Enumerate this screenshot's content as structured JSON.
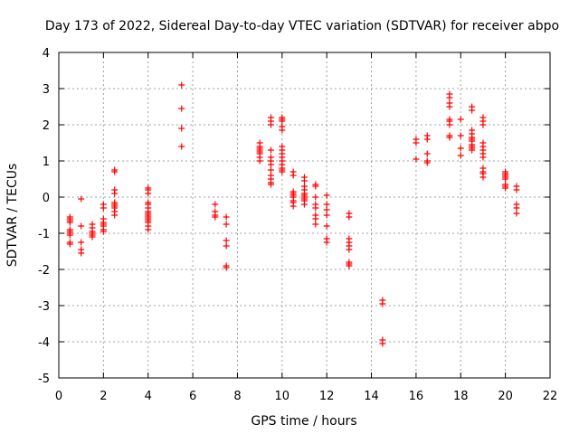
{
  "chart_data": {
    "type": "scatter",
    "title": "Day 173 of 2022, Sidereal Day-to-day VTEC variation (SDTVAR) for receiver abpo",
    "xlabel": "GPS time / hours",
    "ylabel": "SDTVAR / TECUs",
    "xlim": [
      0,
      22
    ],
    "ylim": [
      -5,
      4
    ],
    "xticks": [
      0,
      2,
      4,
      6,
      8,
      10,
      12,
      14,
      16,
      18,
      20,
      22
    ],
    "yticks": [
      -5,
      -4,
      -3,
      -2,
      -1,
      0,
      1,
      2,
      3,
      4
    ],
    "grid": true,
    "marker": "+",
    "color": "#ff0000",
    "series": [
      {
        "name": "SDTVAR",
        "x": [
          0.5,
          0.5,
          0.5,
          0.5,
          0.5,
          0.5,
          0.5,
          0.5,
          0.5,
          0.5,
          1.0,
          1.0,
          1.0,
          1.0,
          1.0,
          1.5,
          1.5,
          1.5,
          1.5,
          1.5,
          1.5,
          2.0,
          2.0,
          2.0,
          2.0,
          2.0,
          2.0,
          2.0,
          2.0,
          2.5,
          2.5,
          2.5,
          2.5,
          2.5,
          2.5,
          2.5,
          2.5,
          2.5,
          2.5,
          4.0,
          4.0,
          4.0,
          4.0,
          4.0,
          4.0,
          4.0,
          4.0,
          4.0,
          4.0,
          4.0,
          4.0,
          4.0,
          4.0,
          4.0,
          5.5,
          5.5,
          5.5,
          5.5,
          7.0,
          7.0,
          7.0,
          7.0,
          7.5,
          7.5,
          7.5,
          7.5,
          7.5,
          7.5,
          9.0,
          9.0,
          9.0,
          9.0,
          9.0,
          9.0,
          9.0,
          9.0,
          9.5,
          9.5,
          9.5,
          9.5,
          9.5,
          9.5,
          9.5,
          9.5,
          9.5,
          9.5,
          9.5,
          9.5,
          10.0,
          10.0,
          10.0,
          10.0,
          10.0,
          10.0,
          10.0,
          10.0,
          10.0,
          10.0,
          10.0,
          10.0,
          10.0,
          10.0,
          10.5,
          10.5,
          10.5,
          10.5,
          10.5,
          10.5,
          10.5,
          10.5,
          10.5,
          11.0,
          11.0,
          11.0,
          11.0,
          11.0,
          11.0,
          11.0,
          11.0,
          11.0,
          11.0,
          11.5,
          11.5,
          11.5,
          11.5,
          11.5,
          11.5,
          11.5,
          11.5,
          12.0,
          12.0,
          12.0,
          12.0,
          12.0,
          12.0,
          12.0,
          13.0,
          13.0,
          13.0,
          13.0,
          13.0,
          13.0,
          13.0,
          13.0,
          13.0,
          14.5,
          14.5,
          14.5,
          14.5,
          16.0,
          16.0,
          16.0,
          16.5,
          16.5,
          16.5,
          16.5,
          16.5,
          17.5,
          17.5,
          17.5,
          17.5,
          17.5,
          17.5,
          17.5,
          17.5,
          17.5,
          18.0,
          18.0,
          18.0,
          18.0,
          18.5,
          18.5,
          18.5,
          18.5,
          18.5,
          18.5,
          18.5,
          18.5,
          18.5,
          18.5,
          18.5,
          19.0,
          19.0,
          19.0,
          19.0,
          19.0,
          19.0,
          19.0,
          19.0,
          19.0,
          19.0,
          19.0,
          19.0,
          20.0,
          20.0,
          20.0,
          20.0,
          20.0,
          20.0,
          20.0,
          20.0,
          20.5,
          20.5,
          20.5,
          20.5,
          20.5
        ],
        "y": [
          -0.6,
          -0.55,
          -0.65,
          -0.9,
          -0.95,
          -1.0,
          -1.05,
          -1.25,
          -1.3,
          -0.7,
          -0.05,
          -0.8,
          -1.25,
          -1.45,
          -1.55,
          -0.75,
          -0.85,
          -0.95,
          -1.0,
          -1.05,
          -1.1,
          -0.2,
          -0.3,
          -0.6,
          -0.7,
          -0.75,
          -0.8,
          -0.9,
          -0.95,
          0.75,
          0.7,
          0.2,
          0.1,
          -0.15,
          -0.2,
          -0.25,
          -0.3,
          -0.4,
          -0.5,
          0.25,
          0.2,
          0.1,
          -0.15,
          -0.2,
          -0.3,
          -0.4,
          -0.45,
          -0.5,
          -0.55,
          -0.6,
          -0.65,
          -0.7,
          -0.8,
          -0.9,
          3.1,
          2.45,
          1.9,
          1.4,
          -0.2,
          -0.4,
          -0.5,
          -0.55,
          -0.55,
          -0.75,
          -1.2,
          -1.35,
          -1.9,
          -1.95,
          1.5,
          1.4,
          1.35,
          1.3,
          1.25,
          1.2,
          1.1,
          1.0,
          2.2,
          2.1,
          2.0,
          1.3,
          1.1,
          1.0,
          0.9,
          0.75,
          0.6,
          0.5,
          0.4,
          0.35,
          2.2,
          2.15,
          2.1,
          1.95,
          1.85,
          1.4,
          1.3,
          1.2,
          1.1,
          1.0,
          0.9,
          0.8,
          0.75,
          0.7,
          0.7,
          0.6,
          0.15,
          0.1,
          0.05,
          0.0,
          -0.1,
          -0.15,
          -0.25,
          0.55,
          0.45,
          0.3,
          0.2,
          0.1,
          0.05,
          0.0,
          -0.05,
          -0.1,
          -0.2,
          0.35,
          0.3,
          0.0,
          -0.2,
          -0.3,
          -0.5,
          -0.6,
          -0.75,
          0.05,
          -0.2,
          -0.35,
          -0.5,
          -0.8,
          -1.15,
          -1.25,
          -0.45,
          -0.55,
          -1.15,
          -1.25,
          -1.35,
          -1.45,
          -1.8,
          -1.85,
          -1.9,
          -2.85,
          -2.95,
          -3.95,
          -4.05,
          1.6,
          1.5,
          1.05,
          1.7,
          1.6,
          1.2,
          1.0,
          0.95,
          2.85,
          2.75,
          2.6,
          2.5,
          2.15,
          2.1,
          2.0,
          1.7,
          1.65,
          2.15,
          1.7,
          1.35,
          1.15,
          2.5,
          2.4,
          1.85,
          1.75,
          1.65,
          1.6,
          1.55,
          1.45,
          1.4,
          1.35,
          1.3,
          2.2,
          2.1,
          2.0,
          1.5,
          1.4,
          1.3,
          1.2,
          1.1,
          0.8,
          0.7,
          0.65,
          0.55,
          0.7,
          0.65,
          0.6,
          0.55,
          0.5,
          0.35,
          0.3,
          0.25,
          0.3,
          0.2,
          -0.2,
          -0.3,
          -0.45
        ]
      }
    ]
  }
}
